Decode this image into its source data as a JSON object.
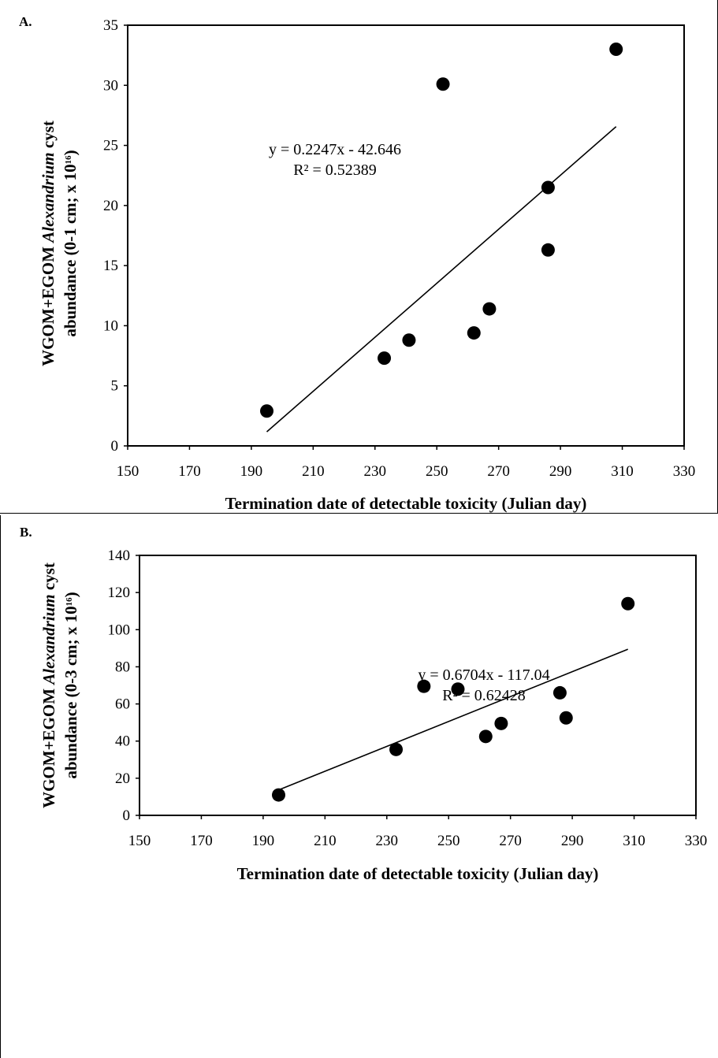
{
  "chart_data": [
    {
      "type": "scatter",
      "panel_label": "A.",
      "xlabel": "Termination date of detectable toxicity (Julian day)",
      "ylabel_line1_pre": "WGOM+EGOM ",
      "ylabel_line1_italic": "Alexandrium",
      "ylabel_line1_post": " cyst",
      "ylabel_line2_pre": "abundance (0-1 cm; x 10",
      "ylabel_line2_sup": "16",
      "ylabel_line2_post": ")",
      "xlim": [
        150,
        330
      ],
      "ylim": [
        0,
        35
      ],
      "xticks": [
        "150",
        "170",
        "190",
        "210",
        "230",
        "250",
        "270",
        "290",
        "310",
        "330"
      ],
      "yticks": [
        "0",
        "5",
        "10",
        "15",
        "20",
        "25",
        "30",
        "35"
      ],
      "points": [
        {
          "x": 195,
          "y": 2.9
        },
        {
          "x": 233,
          "y": 7.3
        },
        {
          "x": 241,
          "y": 8.8
        },
        {
          "x": 252,
          "y": 30.1
        },
        {
          "x": 262,
          "y": 9.4
        },
        {
          "x": 267,
          "y": 11.4
        },
        {
          "x": 286,
          "y": 21.5
        },
        {
          "x": 286,
          "y": 16.3
        },
        {
          "x": 308,
          "y": 33.0
        }
      ],
      "trendline": {
        "slope": 0.2247,
        "intercept": -42.646,
        "x_range": [
          195,
          308
        ]
      },
      "equation": "y = 0.2247x - 42.646",
      "r_squared": "R² = 0.52389",
      "grid": false,
      "legend": "none"
    },
    {
      "type": "scatter",
      "panel_label": "B.",
      "xlabel": "Termination date of detectable toxicity (Julian day)",
      "ylabel_line1_pre": "WGOM+EGOM ",
      "ylabel_line1_italic": "Alexandrium",
      "ylabel_line1_post": " cyst",
      "ylabel_line2_pre": "abundance (0-3 cm; x 10",
      "ylabel_line2_sup": "16",
      "ylabel_line2_post": ")",
      "xlim": [
        150,
        330
      ],
      "ylim": [
        0,
        140
      ],
      "xticks": [
        "150",
        "170",
        "190",
        "210",
        "230",
        "250",
        "270",
        "290",
        "310",
        "330"
      ],
      "yticks": [
        "0",
        "20",
        "40",
        "60",
        "80",
        "100",
        "120",
        "140"
      ],
      "points": [
        {
          "x": 195,
          "y": 11
        },
        {
          "x": 233,
          "y": 35.5
        },
        {
          "x": 242,
          "y": 69.5
        },
        {
          "x": 253,
          "y": 68
        },
        {
          "x": 262,
          "y": 42.5
        },
        {
          "x": 267,
          "y": 49.5
        },
        {
          "x": 286,
          "y": 66
        },
        {
          "x": 288,
          "y": 52.5
        },
        {
          "x": 308,
          "y": 114
        }
      ],
      "trendline": {
        "slope": 0.6704,
        "intercept": -117.04,
        "x_range": [
          195,
          308
        ]
      },
      "equation": "y = 0.6704x - 117.04",
      "r_squared": "R² = 0.62428",
      "grid": false,
      "legend": "none"
    }
  ]
}
